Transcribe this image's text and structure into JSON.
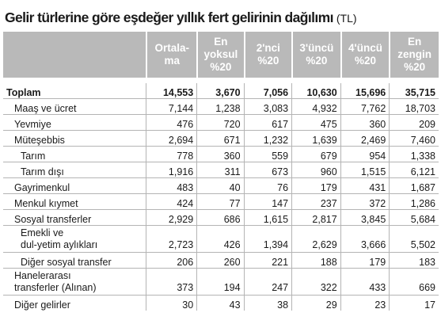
{
  "title": {
    "text": "Gelir türlerine göre eşdeğer yıllık fert gelirinin dağılımı",
    "unit": "(TL)"
  },
  "columns": [
    "Ortala-\nma",
    "En yoksul\n%20",
    "2'nci\n%20",
    "3'üncü\n%20",
    "4'üncü\n%20",
    "En zengin\n%20"
  ],
  "rows": [
    {
      "label": "Toplam",
      "values": [
        "14,553",
        "3,670",
        "7,056",
        "10,630",
        "15,696",
        "35,715"
      ]
    },
    {
      "label": "Maaş ve ücret",
      "values": [
        "7,144",
        "1,238",
        "3,083",
        "4,932",
        "7,762",
        "18,703"
      ]
    },
    {
      "label": "Yevmiye",
      "values": [
        "476",
        "720",
        "617",
        "475",
        "360",
        "209"
      ]
    },
    {
      "label": "Müteşebbis",
      "values": [
        "2,694",
        "671",
        "1,232",
        "1,639",
        "2,469",
        "7,460"
      ]
    },
    {
      "label": "Tarım",
      "values": [
        "778",
        "360",
        "559",
        "679",
        "954",
        "1,338"
      ]
    },
    {
      "label": "Tarım dışı",
      "values": [
        "1,916",
        "311",
        "673",
        "960",
        "1,515",
        "6,121"
      ]
    },
    {
      "label": "Gayrimenkul",
      "values": [
        "483",
        "40",
        "76",
        "179",
        "431",
        "1,687"
      ]
    },
    {
      "label": "Menkul kıymet",
      "values": [
        "424",
        "77",
        "147",
        "237",
        "372",
        "1,286"
      ]
    },
    {
      "label": "Sosyal transferler",
      "values": [
        "2,929",
        "686",
        "1,615",
        "2,817",
        "3,845",
        "5,684"
      ]
    },
    {
      "label": "Emekli ve\ndul-yetim aylıkları",
      "values": [
        "2,723",
        "426",
        "1,394",
        "2,629",
        "3,666",
        "5,502"
      ]
    },
    {
      "label": "Diğer sosyal transfer",
      "values": [
        "206",
        "260",
        "221",
        "188",
        "179",
        "183"
      ]
    },
    {
      "label": "Hanelerarası\ntransferler (Alınan)",
      "values": [
        "373",
        "194",
        "247",
        "322",
        "433",
        "669"
      ]
    },
    {
      "label": "Diğer gelirler",
      "values": [
        "30",
        "43",
        "38",
        "29",
        "23",
        "17"
      ]
    }
  ]
}
